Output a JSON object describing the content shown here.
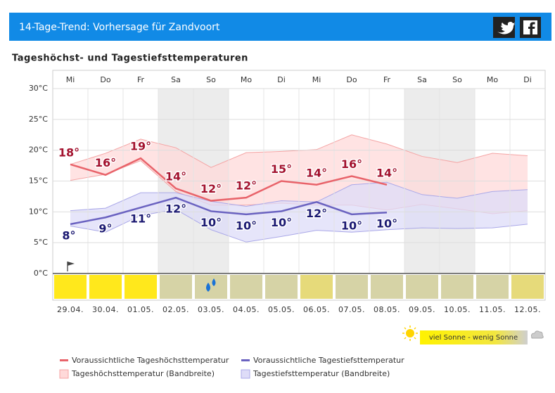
{
  "header": {
    "title": "14-Tage-Trend: Vorhersage für Zandvoort"
  },
  "chart_data": {
    "type": "line",
    "title": "Tageshöchst- und Tagestiefsttemperaturen",
    "categories": [
      "29.04.",
      "30.04.",
      "01.05.",
      "02.05.",
      "03.05.",
      "04.05.",
      "05.05.",
      "06.05.",
      "07.05.",
      "08.05.",
      "09.05.",
      "10.05.",
      "11.05.",
      "12.05."
    ],
    "weekdays": [
      "Mi",
      "Do",
      "Fr",
      "Sa",
      "So",
      "Mo",
      "Di",
      "Mi",
      "Do",
      "Fr",
      "Sa",
      "So",
      "Mo",
      "Di"
    ],
    "weekend": [
      false,
      false,
      false,
      true,
      true,
      false,
      false,
      false,
      false,
      false,
      true,
      true,
      false,
      false
    ],
    "sunshine_colors": [
      "#ffe81c",
      "#ffe81c",
      "#ffe81c",
      "#d6d3a6",
      "#d6d3a6",
      "#d6d3a6",
      "#d6d3a6",
      "#e6da7a",
      "#d6d3a6",
      "#d6d3a6",
      "#d6d3a6",
      "#d6d3a6",
      "#d6d3a6",
      "#e6da7a"
    ],
    "sunshine_legend": "viel Sonne - wenig Sonne",
    "ylim": [
      0,
      30
    ],
    "yticks": [
      {
        "value": 0,
        "label": "0°C"
      },
      {
        "value": 5,
        "label": "5°C"
      },
      {
        "value": 10,
        "label": "10°C"
      },
      {
        "value": 15,
        "label": "15°C"
      },
      {
        "value": 20,
        "label": "20°C"
      },
      {
        "value": 25,
        "label": "25°C"
      },
      {
        "value": 30,
        "label": "30°C"
      }
    ],
    "grid": true,
    "series": [
      {
        "name": "Voraussichtliche Tageshöchsttemperatur",
        "color": "#e8636a",
        "label_color": "#a3122e",
        "values": [
          17.7,
          16,
          18.7,
          13.8,
          11.8,
          12.3,
          15,
          14.4,
          15.8,
          14.4,
          null,
          null,
          null,
          null
        ],
        "value_labels": [
          "18°",
          "16°",
          "19°",
          "14°",
          "12°",
          "12°",
          "15°",
          "14°",
          "16°",
          "14°",
          null,
          null,
          null,
          null
        ]
      },
      {
        "name": "Voraussichtliche Tagestiefsttemperatur",
        "color": "#6a62c0",
        "label_color": "#1c1a72",
        "values": [
          8,
          9.1,
          10.7,
          12.3,
          10.1,
          9.6,
          10.1,
          11.6,
          9.6,
          9.9,
          null,
          null,
          null,
          null
        ],
        "value_labels": [
          "8°",
          "9°",
          "11°",
          "12°",
          "10°",
          "10°",
          "10°",
          "12°",
          "10°",
          "10°",
          null,
          null,
          null,
          null
        ]
      },
      {
        "name": "Tageshöchsttemperatur (Bandbreite)",
        "color": "#ffd9d9",
        "edge_color": "#f4a4a4",
        "high": [
          17.7,
          19.5,
          21.8,
          20.4,
          17.2,
          19.6,
          19.8,
          20.1,
          22.5,
          21,
          19,
          18,
          19.5,
          19.1
        ],
        "low": [
          15.1,
          16.1,
          18.3,
          13.3,
          11.1,
          11.1,
          11.4,
          11.1,
          11.1,
          10.3,
          11.2,
          10.5,
          9.7,
          10.2
        ]
      },
      {
        "name": "Tagestiefsttemperatur (Bandbreite)",
        "color": "#dedcf8",
        "edge_color": "#aaa8e8",
        "high": [
          10.2,
          10.6,
          13.1,
          13.1,
          11.7,
          10.9,
          11.8,
          11.6,
          14.4,
          14.8,
          12.8,
          12.2,
          13.3,
          13.6
        ],
        "low": [
          7.7,
          6.7,
          9.4,
          10.4,
          7.1,
          5.1,
          6,
          7,
          6.7,
          7.1,
          7.4,
          7.3,
          7.4,
          8
        ]
      }
    ]
  }
}
